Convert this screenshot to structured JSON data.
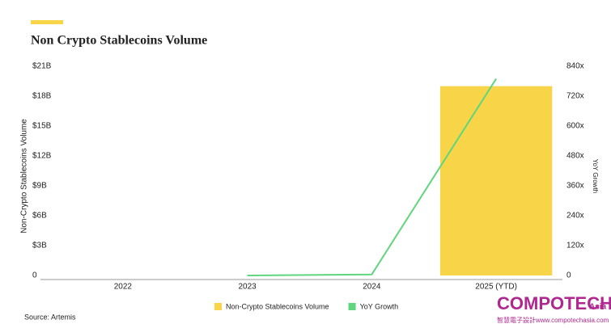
{
  "chart_data": {
    "type": "bar",
    "title": "Non Crypto Stablecoins Volume",
    "y_label": "Non-Crypto Stablecoins Volume",
    "y2_label": "YoY Growth",
    "categories": [
      "2022",
      "2023",
      "2024",
      "2025 (YTD)"
    ],
    "series": [
      {
        "name": "Non-Crypto Stablecoins Volume",
        "type": "bar",
        "color": "#f7d448",
        "values": [
          0,
          0,
          0,
          19000000000
        ]
      },
      {
        "name": "YoY Growth",
        "type": "line",
        "axis": "y2",
        "color": "#5fd67e",
        "values": [
          null,
          0,
          4,
          790
        ]
      }
    ],
    "ylim": [
      0,
      21000000000
    ],
    "yticks": [
      0,
      {
        "value": 3000000000,
        "label": "$3B"
      },
      {
        "value": 6000000000,
        "label": "$6B"
      },
      {
        "value": 9000000000,
        "label": "$9B"
      },
      {
        "value": 12000000000,
        "label": "$12B"
      },
      {
        "value": 15000000000,
        "label": "$15B"
      },
      {
        "value": 18000000000,
        "label": "$18B"
      },
      {
        "value": 21000000000,
        "label": "$21B"
      }
    ],
    "y2lim": [
      0,
      840
    ],
    "y2ticks": [
      0,
      {
        "value": 120,
        "label": "120x"
      },
      {
        "value": 240,
        "label": "240x"
      },
      {
        "value": 360,
        "label": "360x"
      },
      {
        "value": 480,
        "label": "480x"
      },
      {
        "value": 600,
        "label": "600x"
      },
      {
        "value": 720,
        "label": "720x"
      },
      {
        "value": 840,
        "label": "840x"
      }
    ],
    "grid": false,
    "legend": "bottom",
    "source": "Source: Artemis"
  },
  "watermark": {
    "brand": "COMPOTECH",
    "suffix": "Asia",
    "tagline": "智慧電子設計www.compotechasia.com"
  }
}
